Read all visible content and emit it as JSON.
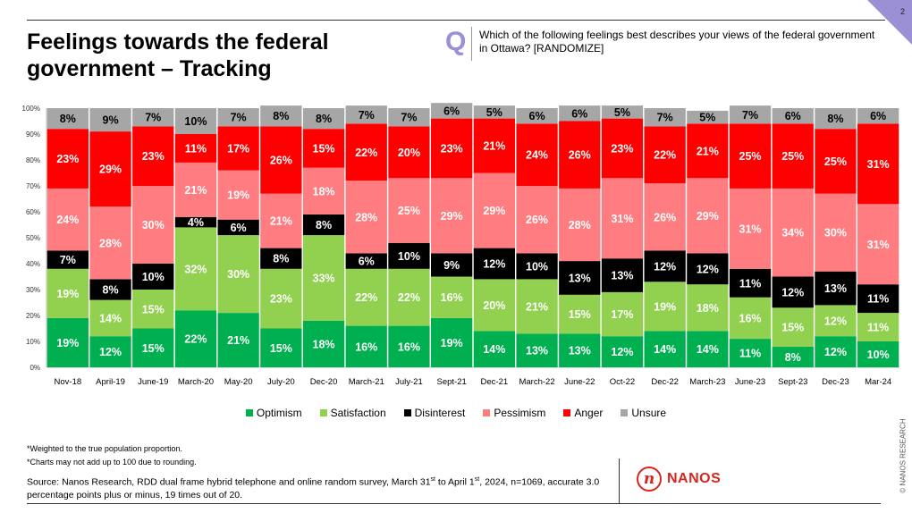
{
  "page_number": "2",
  "title": "Feelings towards the federal government – Tracking",
  "question_letter": "Q",
  "question": "Which of the following feelings best describes your views of the federal government in Ottawa? [RANDOMIZE]",
  "footnotes": [
    "*Weighted to the true population proportion.",
    "*Charts may not add up to 100 due to rounding."
  ],
  "source": {
    "prefix": "Source: Nanos Research, RDD dual frame hybrid telephone and online random survey, March 31",
    "sup1": "st",
    "mid": " to April 1",
    "sup2": "st",
    "suffix": ", 2024, n=1069, accurate 3.0 percentage points plus or minus, 19 times out of 20."
  },
  "logo_letter": "n",
  "logo_text": "NANOS",
  "copyright": "© NANOS RESEARCH",
  "chart_data": {
    "type": "bar",
    "stacked": true,
    "categories": [
      "Nov-18",
      "April-19",
      "June-19",
      "March-20",
      "May-20",
      "July-20",
      "Dec-20",
      "March-21",
      "July-21",
      "Sept-21",
      "Dec-21",
      "March-22",
      "June-22",
      "Oct-22",
      "Dec-22",
      "March-23",
      "June-23",
      "Sept-23",
      "Dec-23",
      "Mar-24"
    ],
    "y_ticks": [
      "0%",
      "10%",
      "20%",
      "30%",
      "40%",
      "50%",
      "60%",
      "70%",
      "80%",
      "90%",
      "100%"
    ],
    "ylim": [
      0,
      100
    ],
    "legend_position": "bottom",
    "series": [
      {
        "name": "Optimism",
        "color": "#00b050",
        "label_color": "#ffffff",
        "values": [
          19,
          12,
          15,
          22,
          21,
          15,
          18,
          16,
          16,
          19,
          14,
          13,
          13,
          12,
          14,
          14,
          11,
          8,
          12,
          10
        ]
      },
      {
        "name": "Satisfaction",
        "color": "#92d050",
        "label_color": "#ffffff",
        "values": [
          19,
          14,
          15,
          32,
          30,
          23,
          33,
          22,
          22,
          16,
          20,
          21,
          15,
          17,
          19,
          18,
          16,
          15,
          12,
          11
        ]
      },
      {
        "name": "Disinterest",
        "color": "#000000",
        "label_color": "#ffffff",
        "values": [
          7,
          8,
          10,
          4,
          6,
          8,
          8,
          6,
          10,
          9,
          12,
          10,
          13,
          13,
          12,
          12,
          11,
          12,
          13,
          11
        ]
      },
      {
        "name": "Pessimism",
        "color": "#ff7c80",
        "label_color": "#ffffff",
        "values": [
          24,
          28,
          30,
          21,
          19,
          21,
          18,
          28,
          25,
          29,
          29,
          26,
          28,
          31,
          26,
          29,
          31,
          34,
          30,
          31
        ]
      },
      {
        "name": "Anger",
        "color": "#ff0000",
        "label_color": "#ffffff",
        "values": [
          23,
          29,
          23,
          11,
          17,
          26,
          15,
          22,
          20,
          23,
          21,
          24,
          26,
          23,
          22,
          21,
          25,
          25,
          25,
          31
        ]
      },
      {
        "name": "Unsure",
        "color": "#a6a6a6",
        "label_color": "#000000",
        "values": [
          8,
          9,
          7,
          10,
          7,
          8,
          8,
          7,
          7,
          6,
          5,
          6,
          6,
          5,
          7,
          5,
          7,
          6,
          8,
          6
        ]
      }
    ]
  }
}
